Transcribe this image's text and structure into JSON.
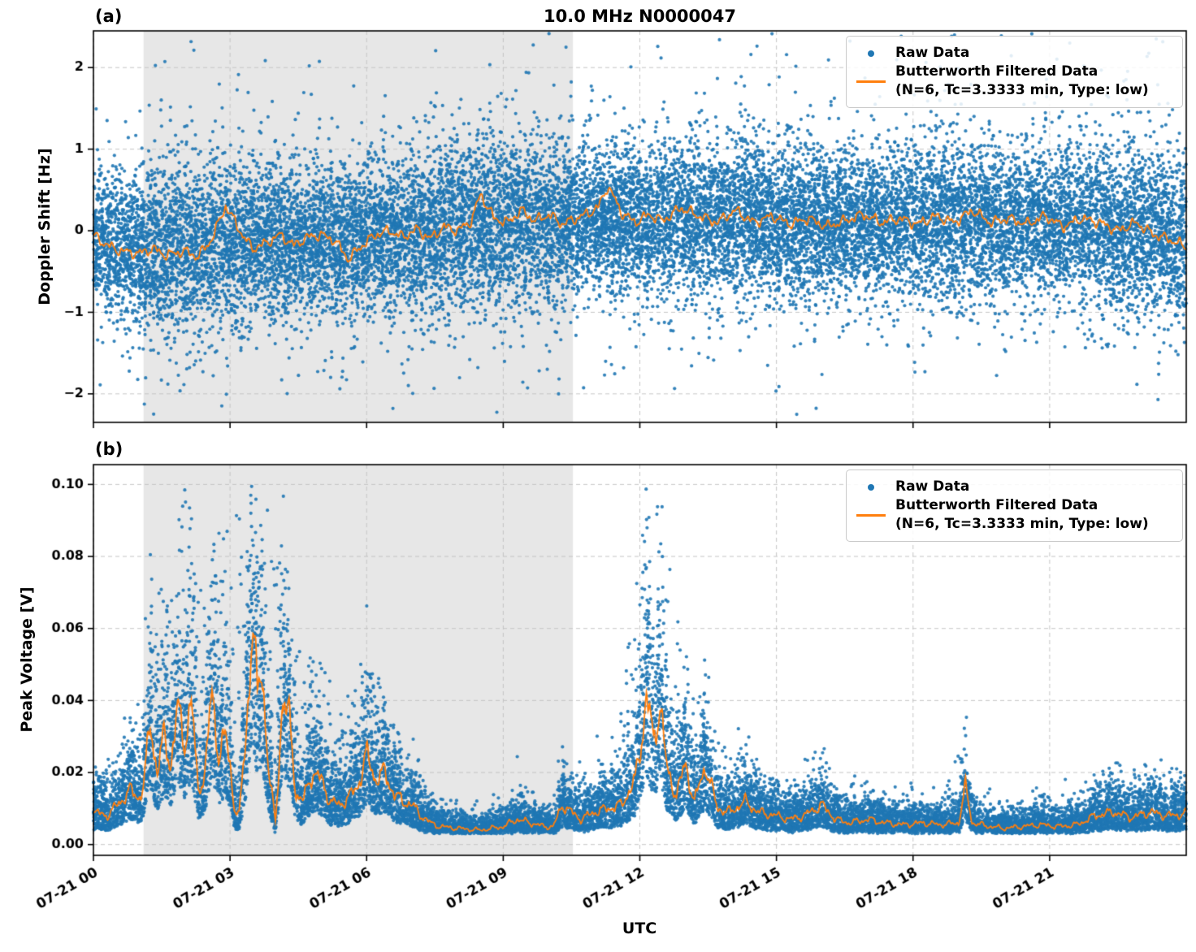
{
  "figure": {
    "legend": {
      "raw": "Raw Data",
      "filtered_line1": "Butterworth Filtered Data",
      "filtered_line2": "(N=6, Tc=3.3333 min, Type: low)"
    },
    "colors": {
      "raw": "#1f77b4",
      "filtered": "#ff7f0e",
      "shade": "#e7e7e7",
      "grid": "#c4c4c4",
      "frame": "#000000"
    }
  },
  "chart_data": [
    {
      "type": "scatter",
      "panel_tag": "(a)",
      "title": "10.0 MHz N0000047",
      "ylabel": "Doppler Shift [Hz]",
      "xlabel": "",
      "legend_position": "upper right",
      "grid": "dashed",
      "xlim_hours": [
        0,
        24
      ],
      "ylim": [
        -2.35,
        2.45
      ],
      "yticks": [
        -2,
        -1,
        0,
        1,
        2
      ],
      "ytick_labels": [
        "−2",
        "−1",
        "0",
        "1",
        "2"
      ],
      "xticks_hours": [
        0,
        3,
        6,
        9,
        12,
        15,
        18,
        21
      ],
      "xtick_labels": [
        "07-21 00",
        "07-21 03",
        "07-21 06",
        "07-21 09",
        "07-21 12",
        "07-21 15",
        "07-21 18",
        "07-21 21"
      ],
      "show_xtick_labels": false,
      "shaded_region_hours": [
        1.1,
        10.53
      ],
      "seed": 42,
      "raw_scatter": {
        "mode": "symmetric",
        "n": 20000,
        "x": [
          0,
          1,
          2,
          3,
          4,
          5,
          6,
          7,
          8,
          9,
          10,
          11,
          12,
          13,
          14,
          15,
          16,
          17,
          18,
          19,
          20,
          21,
          22,
          23,
          24
        ],
        "center": [
          -0.1,
          -0.25,
          -0.25,
          -0.12,
          -0.1,
          -0.15,
          -0.08,
          -0.05,
          0.05,
          0.1,
          0.1,
          0.15,
          0.12,
          0.15,
          0.12,
          0.1,
          0.08,
          0.1,
          0.1,
          0.12,
          0.1,
          0.1,
          0.05,
          0.0,
          -0.1
        ],
        "sigma": [
          0.42,
          0.5,
          0.55,
          0.5,
          0.45,
          0.45,
          0.5,
          0.48,
          0.52,
          0.55,
          0.5,
          0.46,
          0.46,
          0.5,
          0.5,
          0.46,
          0.45,
          0.45,
          0.5,
          0.46,
          0.45,
          0.45,
          0.46,
          0.5,
          0.5
        ],
        "tail_prob": 0.055,
        "tail_scale": 2.35,
        "clip": [
          -2.3,
          2.42
        ]
      },
      "filtered_line": {
        "jitter_amp": 0.085,
        "x": [
          0,
          0.3,
          0.6,
          1.0,
          1.3,
          1.6,
          2.0,
          2.3,
          2.6,
          2.9,
          3.1,
          3.3,
          3.5,
          3.8,
          4.1,
          4.4,
          4.7,
          5.0,
          5.3,
          5.6,
          5.9,
          6.2,
          6.5,
          6.8,
          7.1,
          7.4,
          7.7,
          8.0,
          8.3,
          8.5,
          8.8,
          9.1,
          9.4,
          9.7,
          10.0,
          10.3,
          10.6,
          10.9,
          11.1,
          11.3,
          11.6,
          11.9,
          12.2,
          12.5,
          12.9,
          13.3,
          13.7,
          14.1,
          14.5,
          14.9,
          15.3,
          15.7,
          16.1,
          16.5,
          16.9,
          17.3,
          17.7,
          18.1,
          18.5,
          18.9,
          19.3,
          19.7,
          20.1,
          20.5,
          20.9,
          21.3,
          21.7,
          22.1,
          22.5,
          22.9,
          23.3,
          23.6,
          24.0
        ],
        "y": [
          -0.05,
          -0.18,
          -0.25,
          -0.28,
          -0.22,
          -0.3,
          -0.25,
          -0.32,
          -0.1,
          0.3,
          0.12,
          -0.08,
          -0.22,
          -0.15,
          -0.05,
          -0.18,
          -0.08,
          -0.05,
          -0.12,
          -0.35,
          -0.18,
          -0.05,
          0.0,
          -0.08,
          0.02,
          -0.1,
          0.05,
          0.0,
          0.12,
          0.45,
          0.15,
          0.1,
          0.25,
          0.12,
          0.2,
          0.08,
          0.15,
          0.22,
          0.3,
          0.55,
          0.22,
          0.1,
          0.2,
          0.12,
          0.28,
          0.18,
          0.1,
          0.25,
          0.1,
          0.18,
          0.08,
          0.15,
          0.05,
          0.12,
          0.2,
          0.1,
          0.15,
          0.08,
          0.18,
          0.1,
          0.25,
          0.1,
          0.15,
          0.08,
          0.18,
          0.05,
          0.15,
          0.1,
          0.0,
          0.1,
          -0.05,
          -0.1,
          -0.2
        ]
      }
    },
    {
      "type": "scatter",
      "panel_tag": "(b)",
      "title": "",
      "ylabel": "Peak Voltage [V]",
      "xlabel": "UTC",
      "legend_position": "upper right",
      "grid": "dashed",
      "xlim_hours": [
        0,
        24
      ],
      "ylim": [
        -0.003,
        0.1055
      ],
      "yticks": [
        0,
        0.02,
        0.04,
        0.06,
        0.08,
        0.1
      ],
      "ytick_labels": [
        "0.00",
        "0.02",
        "0.04",
        "0.06",
        "0.08",
        "0.10"
      ],
      "xticks_hours": [
        0,
        3,
        6,
        9,
        12,
        15,
        18,
        21
      ],
      "xtick_labels": [
        "07-21 00",
        "07-21 03",
        "07-21 06",
        "07-21 09",
        "07-21 12",
        "07-21 15",
        "07-21 18",
        "07-21 21"
      ],
      "show_xtick_labels": true,
      "shaded_region_hours": [
        1.1,
        10.53
      ],
      "seed": 7,
      "raw_scatter": {
        "mode": "positive",
        "n": 16000,
        "floor": 0.003,
        "x": [
          0,
          0.5,
          1,
          1.5,
          2,
          2.5,
          3,
          3.5,
          4,
          4.5,
          5,
          5.5,
          6,
          6.5,
          7,
          7.5,
          8,
          8.5,
          9,
          9.5,
          10,
          10.5,
          11,
          11.5,
          12,
          12.5,
          13,
          13.5,
          14,
          14.5,
          15,
          15.5,
          16,
          16.5,
          17,
          17.5,
          18,
          18.5,
          19,
          19.5,
          20,
          20.5,
          21,
          21.5,
          22,
          22.5,
          23,
          23.5,
          24
        ],
        "peak": [
          0.02,
          0.022,
          0.035,
          0.075,
          0.099,
          0.08,
          0.1,
          0.09,
          0.095,
          0.06,
          0.05,
          0.04,
          0.05,
          0.035,
          0.025,
          0.012,
          0.009,
          0.008,
          0.011,
          0.011,
          0.009,
          0.018,
          0.016,
          0.022,
          0.09,
          0.097,
          0.045,
          0.035,
          0.025,
          0.022,
          0.018,
          0.014,
          0.017,
          0.013,
          0.012,
          0.013,
          0.011,
          0.01,
          0.026,
          0.009,
          0.008,
          0.009,
          0.011,
          0.01,
          0.016,
          0.017,
          0.016,
          0.018,
          0.016
        ],
        "clip": [
          0.002,
          0.1005
        ]
      },
      "filtered_line": {
        "jitter_rel": 0.2,
        "floor": 0.0035,
        "x": [
          0,
          0.3,
          0.6,
          0.8,
          1.0,
          1.1,
          1.25,
          1.4,
          1.55,
          1.7,
          1.85,
          2.0,
          2.15,
          2.3,
          2.45,
          2.6,
          2.75,
          2.9,
          3.0,
          3.1,
          3.2,
          3.35,
          3.5,
          3.6,
          3.7,
          3.85,
          4.0,
          4.15,
          4.3,
          4.45,
          4.6,
          4.8,
          5.0,
          5.2,
          5.4,
          5.6,
          5.8,
          6.0,
          6.2,
          6.4,
          6.6,
          6.8,
          7.0,
          7.2,
          7.4,
          7.6,
          8.0,
          8.5,
          9.0,
          9.3,
          9.6,
          9.9,
          10.1,
          10.3,
          10.5,
          10.7,
          11.0,
          11.3,
          11.6,
          11.9,
          12.05,
          12.15,
          12.3,
          12.45,
          12.6,
          12.8,
          13.0,
          13.2,
          13.45,
          13.7,
          14.0,
          14.3,
          14.6,
          15.0,
          15.3,
          15.6,
          16.0,
          16.3,
          16.6,
          17.0,
          17.4,
          17.8,
          18.2,
          18.6,
          19.0,
          19.15,
          19.3,
          19.7,
          20.0,
          20.4,
          20.8,
          21.2,
          21.6,
          22.0,
          22.4,
          22.8,
          23.2,
          23.6,
          24.0
        ],
        "y": [
          0.009,
          0.008,
          0.012,
          0.015,
          0.013,
          0.016,
          0.034,
          0.02,
          0.03,
          0.022,
          0.038,
          0.028,
          0.04,
          0.015,
          0.02,
          0.042,
          0.025,
          0.03,
          0.022,
          0.01,
          0.008,
          0.03,
          0.063,
          0.04,
          0.05,
          0.02,
          0.006,
          0.04,
          0.035,
          0.014,
          0.012,
          0.02,
          0.018,
          0.012,
          0.011,
          0.013,
          0.016,
          0.025,
          0.018,
          0.02,
          0.014,
          0.012,
          0.011,
          0.008,
          0.006,
          0.005,
          0.0045,
          0.004,
          0.005,
          0.007,
          0.006,
          0.005,
          0.005,
          0.011,
          0.009,
          0.007,
          0.009,
          0.01,
          0.011,
          0.018,
          0.03,
          0.042,
          0.028,
          0.04,
          0.02,
          0.014,
          0.022,
          0.012,
          0.022,
          0.01,
          0.009,
          0.012,
          0.009,
          0.008,
          0.007,
          0.008,
          0.011,
          0.007,
          0.006,
          0.007,
          0.006,
          0.0055,
          0.006,
          0.0055,
          0.006,
          0.016,
          0.006,
          0.005,
          0.0045,
          0.005,
          0.0055,
          0.005,
          0.0055,
          0.008,
          0.009,
          0.0075,
          0.009,
          0.008,
          0.0085
        ]
      }
    }
  ]
}
